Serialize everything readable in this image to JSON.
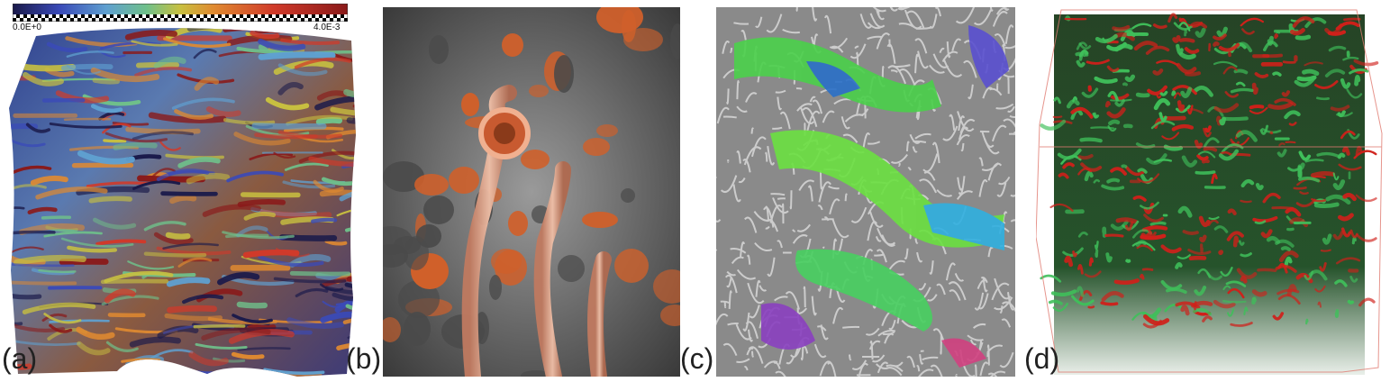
{
  "figure": {
    "panels": [
      {
        "label": "(a)",
        "description": "volume rendering of turbulent vortex structures with a colormap"
      },
      {
        "label": "(b)",
        "description": "isosurfaces in copper and translucent grey"
      },
      {
        "label": "(c)",
        "description": "grey tube field with multicolored blobs"
      },
      {
        "label": "(d)",
        "description": "red and green vortex filaments inside a cube"
      }
    ],
    "colorbar": {
      "min_label": "0.0E+0",
      "max_label": "4.0E-3",
      "colors": [
        "#1a1a4a",
        "#3a4ab8",
        "#5fa0d0",
        "#6fc08a",
        "#c8c040",
        "#e08a30",
        "#d03a2a",
        "#8a1a1a"
      ]
    },
    "accent_colors": {
      "copper": "#e07a50",
      "grey": "#6a6a6a",
      "green": "#3fbf5a",
      "red": "#d0201a"
    }
  }
}
